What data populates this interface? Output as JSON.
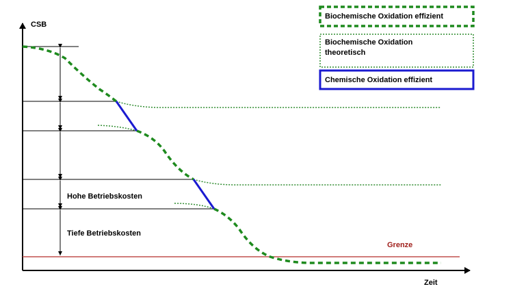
{
  "axes": {
    "y_label": "CSB",
    "x_label": "Zeit"
  },
  "legend": [
    {
      "label": "Biochemische Oxidation effizient"
    },
    {
      "label_lines": [
        "Biochemische Oxidation",
        "theoretisch"
      ]
    },
    {
      "label": "Chemische Oxidation effizient"
    }
  ],
  "annotations": {
    "high_cost": "Hohe Betriebskosten",
    "low_cost": "Tiefe Betriebskosten"
  },
  "threshold": {
    "label": "Grenze"
  }
}
